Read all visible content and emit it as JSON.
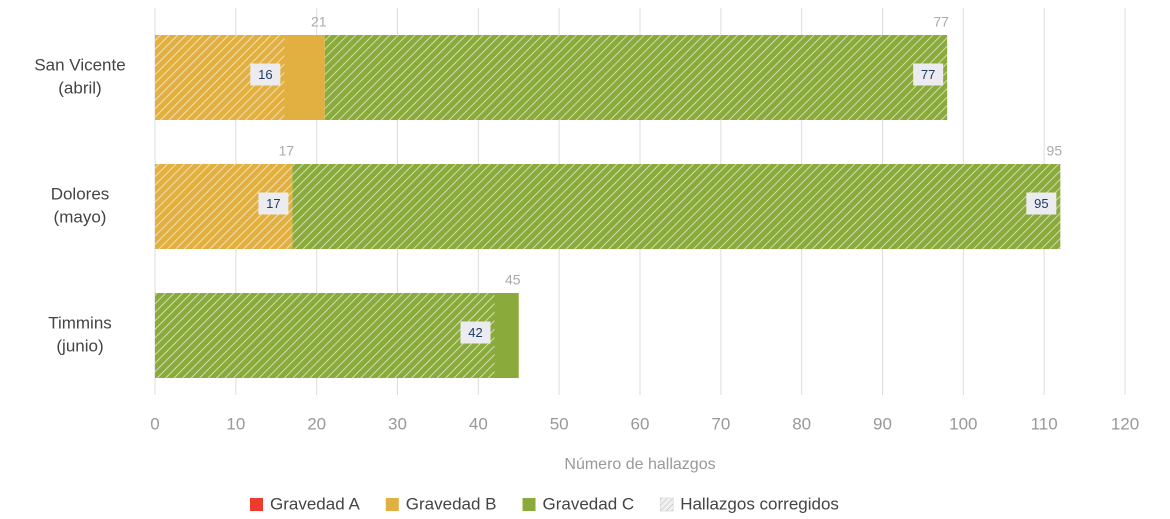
{
  "chart_data": {
    "type": "stacked-barh",
    "categories": [
      [
        "San Vicente",
        "(abril)"
      ],
      [
        "Dolores",
        "(mayo)"
      ],
      [
        "Timmins",
        "(junio)"
      ]
    ],
    "series": [
      {
        "name": "Gravedad A",
        "color": "#ee3b2d",
        "values": [
          0,
          0,
          0
        ],
        "corrected": [
          0,
          0,
          0
        ]
      },
      {
        "name": "Gravedad B",
        "color": "#e1b040",
        "values": [
          21,
          17,
          0
        ],
        "corrected": [
          16,
          17,
          0
        ]
      },
      {
        "name": "Gravedad C",
        "color": "#8aab3b",
        "values": [
          77,
          95,
          45
        ],
        "corrected": [
          77,
          95,
          42
        ]
      }
    ],
    "corrected_name": "Hallazgos corregidos",
    "xlabel": "Número de hallazgos",
    "xlim": [
      0,
      120
    ],
    "xticks": [
      0,
      10,
      20,
      30,
      40,
      50,
      60,
      70,
      80,
      90,
      100,
      110,
      120
    ],
    "grid": true,
    "legend": "bottom"
  }
}
